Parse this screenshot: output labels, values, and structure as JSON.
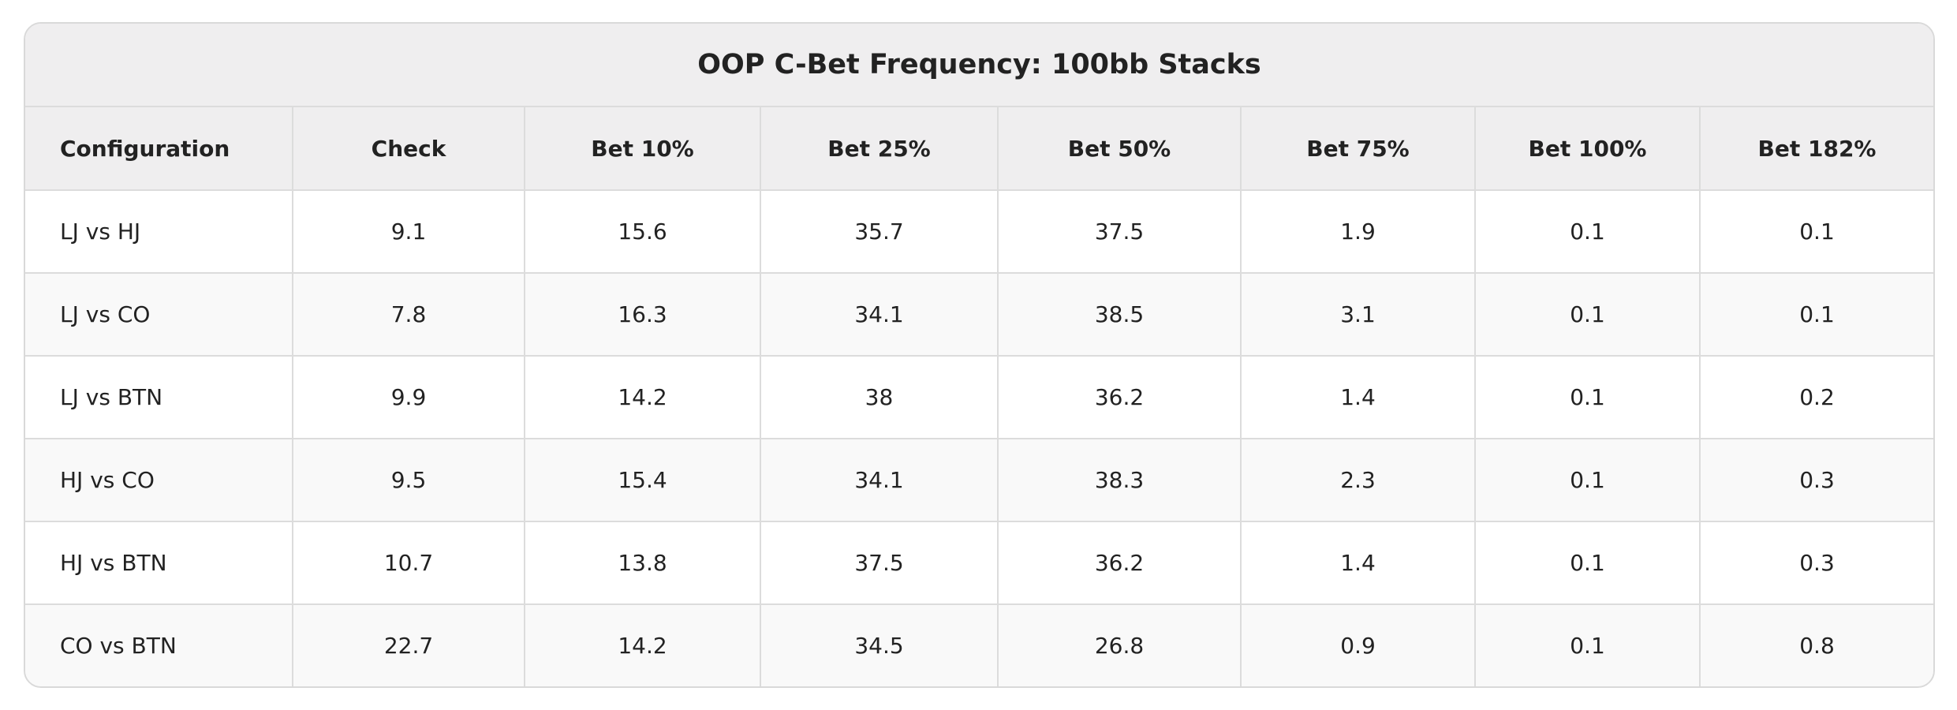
{
  "table": {
    "title": "OOP C-Bet Frequency: 100bb Stacks",
    "columns": [
      "Configuration",
      "Check",
      "Bet 10%",
      "Bet 25%",
      "Bet 50%",
      "Bet 75%",
      "Bet 100%",
      "Bet 182%"
    ],
    "rows": [
      [
        "LJ vs HJ",
        9.1,
        15.6,
        35.7,
        37.5,
        1.9,
        0.1,
        0.1
      ],
      [
        "LJ vs CO",
        7.8,
        16.3,
        34.1,
        38.5,
        3.1,
        0.1,
        0.1
      ],
      [
        "LJ vs BTN",
        9.9,
        14.2,
        38,
        36.2,
        1.4,
        0.1,
        0.2
      ],
      [
        "HJ vs CO",
        9.5,
        15.4,
        34.1,
        38.3,
        2.3,
        0.1,
        0.3
      ],
      [
        "HJ vs BTN",
        10.7,
        13.8,
        37.5,
        36.2,
        1.4,
        0.1,
        0.3
      ],
      [
        "CO vs BTN",
        22.7,
        14.2,
        34.5,
        26.8,
        0.9,
        0.1,
        0.8
      ]
    ]
  }
}
